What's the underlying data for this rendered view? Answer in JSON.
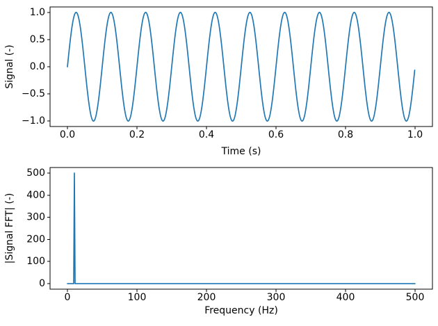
{
  "figure": {
    "background_color": "#ffffff",
    "axes_line_color": "#000000",
    "text_color": "#000000",
    "accent_color": "#1f77b4"
  },
  "chart_data": [
    {
      "type": "line",
      "title": "",
      "xlabel": "Time (s)",
      "ylabel": "Signal (-)",
      "xlim": [
        -0.05,
        1.05
      ],
      "ylim": [
        -1.1,
        1.1
      ],
      "grid": false,
      "legend": null,
      "x_ticks": {
        "values": [
          0.0,
          0.2,
          0.4,
          0.6,
          0.8,
          1.0
        ],
        "labels": [
          "0.0",
          "0.2",
          "0.4",
          "0.6",
          "0.8",
          "1.0"
        ]
      },
      "y_ticks": {
        "values": [
          -1.0,
          -0.5,
          0.0,
          0.5,
          1.0
        ],
        "labels": [
          "−1.0",
          "−0.5",
          "0.0",
          "0.5",
          "1.0"
        ]
      },
      "series": [
        {
          "name": "signal",
          "color": "#1f77b4",
          "line_width": 1.7,
          "generator": {
            "kind": "sine",
            "amplitude": 1.0,
            "frequency_hz": 10,
            "duration_s": 1.0,
            "samples": 1000
          }
        }
      ]
    },
    {
      "type": "line",
      "title": "",
      "xlabel": "Frequency (Hz)",
      "ylabel": "|Signal FFT| (-)",
      "xlim": [
        -25,
        525
      ],
      "ylim": [
        -25,
        525
      ],
      "grid": false,
      "legend": null,
      "x_ticks": {
        "values": [
          0,
          100,
          200,
          300,
          400,
          500
        ],
        "labels": [
          "0",
          "100",
          "200",
          "300",
          "400",
          "500"
        ]
      },
      "y_ticks": {
        "values": [
          0,
          100,
          200,
          300,
          400,
          500
        ],
        "labels": [
          "0",
          "100",
          "200",
          "300",
          "400",
          "500"
        ]
      },
      "series": [
        {
          "name": "signal-fft-magnitude",
          "color": "#1f77b4",
          "line_width": 1.7,
          "generator": {
            "kind": "spectrum",
            "f_min": 0,
            "f_max": 500,
            "step_hz": 1,
            "baseline": 0,
            "peaks": [
              {
                "frequency_hz": 10,
                "magnitude": 500
              }
            ]
          }
        }
      ]
    }
  ]
}
